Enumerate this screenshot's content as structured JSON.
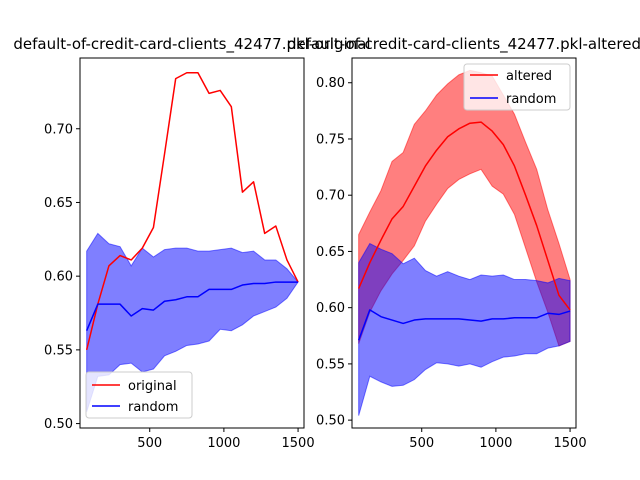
{
  "chart_data": [
    {
      "type": "line",
      "title": "default-of-credit-card-clients_42477.pkl-original",
      "xlabel": "",
      "ylabel": "",
      "xlim": [
        30,
        1540
      ],
      "ylim": [
        0.497,
        0.748
      ],
      "x_ticks": [
        500,
        1000,
        1500
      ],
      "x_tick_labels": [
        "500",
        "1000",
        "1500"
      ],
      "y_ticks": [
        0.5,
        0.55,
        0.6,
        0.65,
        0.7
      ],
      "y_tick_labels": [
        "0.50",
        "0.55",
        "0.60",
        "0.65",
        "0.70"
      ],
      "legend": {
        "position": "lower-left",
        "entries": [
          "original",
          "random"
        ]
      },
      "x": [
        75,
        150,
        225,
        300,
        375,
        450,
        525,
        600,
        675,
        750,
        825,
        900,
        975,
        1050,
        1125,
        1200,
        1275,
        1350,
        1425,
        1500
      ],
      "series": [
        {
          "name": "original",
          "color": "#ff0000",
          "values": [
            0.55,
            0.581,
            0.607,
            0.614,
            0.611,
            0.619,
            0.633,
            0.683,
            0.734,
            0.738,
            0.738,
            0.724,
            0.726,
            0.715,
            0.657,
            0.664,
            0.629,
            0.634,
            0.611,
            0.596
          ]
        },
        {
          "name": "random",
          "color": "#0000ff",
          "values": [
            0.563,
            0.581,
            0.581,
            0.581,
            0.573,
            0.578,
            0.577,
            0.583,
            0.584,
            0.586,
            0.586,
            0.591,
            0.591,
            0.591,
            0.594,
            0.595,
            0.595,
            0.596,
            0.596,
            0.596
          ],
          "band_upper": [
            0.617,
            0.629,
            0.622,
            0.62,
            0.607,
            0.619,
            0.613,
            0.618,
            0.619,
            0.619,
            0.617,
            0.617,
            0.618,
            0.619,
            0.616,
            0.617,
            0.611,
            0.611,
            0.605,
            0.596
          ],
          "band_lower": [
            0.508,
            0.532,
            0.533,
            0.54,
            0.541,
            0.535,
            0.537,
            0.546,
            0.549,
            0.553,
            0.554,
            0.556,
            0.564,
            0.563,
            0.567,
            0.573,
            0.576,
            0.579,
            0.585,
            0.596
          ]
        }
      ]
    },
    {
      "type": "line",
      "title": "default-of-credit-card-clients_42477.pkl-altered",
      "xlabel": "",
      "ylabel": "",
      "xlim": [
        30,
        1540
      ],
      "ylim": [
        0.493,
        0.822
      ],
      "x_ticks": [
        500,
        1000,
        1500
      ],
      "x_tick_labels": [
        "500",
        "1000",
        "1500"
      ],
      "y_ticks": [
        0.5,
        0.55,
        0.6,
        0.65,
        0.7,
        0.75,
        0.8
      ],
      "y_tick_labels": [
        "0.50",
        "0.55",
        "0.60",
        "0.65",
        "0.70",
        "0.75",
        "0.80"
      ],
      "legend": {
        "position": "upper-right",
        "entries": [
          "altered",
          "random"
        ]
      },
      "x": [
        75,
        150,
        225,
        300,
        375,
        450,
        525,
        600,
        675,
        750,
        825,
        900,
        975,
        1050,
        1125,
        1200,
        1275,
        1350,
        1425,
        1500
      ],
      "series": [
        {
          "name": "altered",
          "color": "#ff0000",
          "values": [
            0.617,
            0.64,
            0.66,
            0.679,
            0.69,
            0.708,
            0.726,
            0.74,
            0.752,
            0.759,
            0.764,
            0.765,
            0.757,
            0.745,
            0.726,
            0.7,
            0.673,
            0.642,
            0.611,
            0.598
          ],
          "band_upper": [
            0.665,
            0.685,
            0.704,
            0.73,
            0.738,
            0.763,
            0.775,
            0.789,
            0.799,
            0.807,
            0.811,
            0.809,
            0.806,
            0.789,
            0.772,
            0.747,
            0.723,
            0.687,
            0.657,
            0.625
          ],
          "band_lower": [
            0.568,
            0.596,
            0.615,
            0.63,
            0.642,
            0.655,
            0.677,
            0.692,
            0.706,
            0.714,
            0.719,
            0.723,
            0.708,
            0.701,
            0.683,
            0.653,
            0.623,
            0.596,
            0.566,
            0.57
          ]
        },
        {
          "name": "random",
          "color": "#0000ff",
          "values": [
            0.571,
            0.598,
            0.592,
            0.589,
            0.586,
            0.589,
            0.59,
            0.59,
            0.59,
            0.59,
            0.589,
            0.588,
            0.59,
            0.59,
            0.591,
            0.591,
            0.591,
            0.595,
            0.594,
            0.597
          ],
          "band_upper": [
            0.64,
            0.657,
            0.652,
            0.648,
            0.639,
            0.644,
            0.633,
            0.628,
            0.632,
            0.628,
            0.625,
            0.629,
            0.628,
            0.629,
            0.625,
            0.625,
            0.624,
            0.622,
            0.626,
            0.624
          ],
          "band_lower": [
            0.504,
            0.539,
            0.534,
            0.53,
            0.531,
            0.536,
            0.545,
            0.551,
            0.55,
            0.548,
            0.55,
            0.547,
            0.552,
            0.556,
            0.557,
            0.559,
            0.559,
            0.564,
            0.566,
            0.57
          ]
        }
      ]
    }
  ]
}
